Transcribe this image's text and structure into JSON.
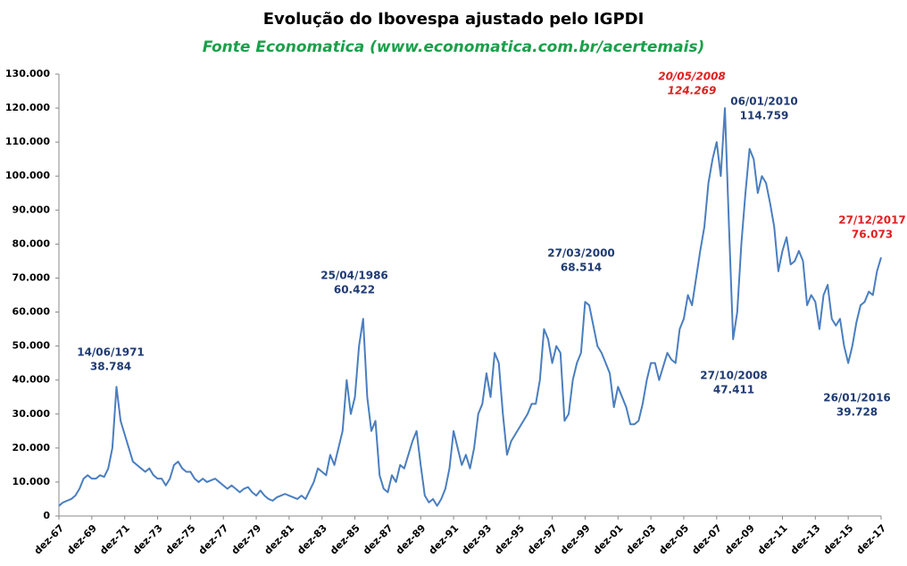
{
  "chart_data": {
    "type": "line",
    "title": "Evolução do Ibovespa ajustado pelo IGPDI",
    "subtitle": "Fonte Economatica (www.economatica.com.br/acertemais)",
    "categories": [
      "dez-67",
      null,
      null,
      null,
      null,
      null,
      null,
      null,
      "dez-69",
      null,
      null,
      null,
      null,
      null,
      null,
      null,
      "dez-71",
      null,
      null,
      null,
      null,
      null,
      null,
      null,
      "dez-73",
      null,
      null,
      null,
      null,
      null,
      null,
      null,
      "dez-75",
      null,
      null,
      null,
      null,
      null,
      null,
      null,
      "dez-77",
      null,
      null,
      null,
      null,
      null,
      null,
      null,
      "dez-79",
      null,
      null,
      null,
      null,
      null,
      null,
      null,
      "dez-81",
      null,
      null,
      null,
      null,
      null,
      null,
      null,
      "dez-83",
      null,
      null,
      null,
      null,
      null,
      null,
      null,
      "dez-85",
      null,
      null,
      null,
      null,
      null,
      null,
      null,
      "dez-87",
      null,
      null,
      null,
      null,
      null,
      null,
      null,
      "dez-89",
      null,
      null,
      null,
      null,
      null,
      null,
      null,
      "dez-91",
      null,
      null,
      null,
      null,
      null,
      null,
      null,
      "dez-93",
      null,
      null,
      null,
      null,
      null,
      null,
      null,
      "dez-95",
      null,
      null,
      null,
      null,
      null,
      null,
      null,
      "dez-97",
      null,
      null,
      null,
      null,
      null,
      null,
      null,
      "dez-99",
      null,
      null,
      null,
      null,
      null,
      null,
      null,
      "dez-01",
      null,
      null,
      null,
      null,
      null,
      null,
      null,
      "dez-03",
      null,
      null,
      null,
      null,
      null,
      null,
      null,
      "dez-05",
      null,
      null,
      null,
      null,
      null,
      null,
      null,
      "dez-07",
      null,
      null,
      null,
      null,
      null,
      null,
      null,
      "dez-09",
      null,
      null,
      null,
      null,
      null,
      null,
      null,
      "dez-11",
      null,
      null,
      null,
      null,
      null,
      null,
      null,
      "dez-13",
      null,
      null,
      null,
      null,
      null,
      null,
      null,
      "dez-15",
      null,
      null,
      null,
      null,
      null,
      null,
      null,
      "dez-17"
    ],
    "series": [
      {
        "color": "#4a7ebf",
        "values": [
          3000,
          4000,
          4500,
          5000,
          6000,
          8000,
          11000,
          12000,
          11000,
          11000,
          12000,
          11500,
          14000,
          20000,
          38000,
          28000,
          24000,
          20000,
          16000,
          15000,
          14000,
          13000,
          14000,
          12000,
          11000,
          11000,
          9000,
          11000,
          15000,
          16000,
          14000,
          13000,
          13000,
          11000,
          10000,
          11000,
          10000,
          10500,
          11000,
          10000,
          9000,
          8000,
          9000,
          8000,
          7000,
          8000,
          8500,
          7000,
          6000,
          7500,
          6000,
          5000,
          4500,
          5500,
          6000,
          6500,
          6000,
          5500,
          5000,
          6000,
          5000,
          7500,
          10000,
          14000,
          13000,
          12000,
          18000,
          15000,
          20000,
          25000,
          40000,
          30000,
          35000,
          50000,
          58000,
          35000,
          25000,
          28000,
          12000,
          8000,
          7000,
          12000,
          10000,
          15000,
          14000,
          18000,
          22000,
          25000,
          15000,
          6000,
          4000,
          5000,
          3000,
          5000,
          8000,
          14000,
          25000,
          20000,
          15000,
          18000,
          14000,
          20000,
          30000,
          33000,
          42000,
          35000,
          48000,
          45000,
          30000,
          18000,
          22000,
          24000,
          26000,
          28000,
          30000,
          33000,
          33000,
          40000,
          55000,
          52000,
          45000,
          50000,
          48000,
          28000,
          30000,
          40000,
          45000,
          48000,
          63000,
          62000,
          56000,
          50000,
          48000,
          45000,
          42000,
          32000,
          38000,
          35000,
          32000,
          27000,
          27000,
          28000,
          33000,
          40000,
          45000,
          45000,
          40000,
          44000,
          48000,
          46000,
          45000,
          55000,
          58000,
          65000,
          62000,
          70000,
          78000,
          85000,
          98000,
          105000,
          110000,
          100000,
          120000,
          85000,
          52000,
          60000,
          80000,
          95000,
          108000,
          105000,
          95000,
          100000,
          98000,
          92000,
          85000,
          72000,
          78000,
          82000,
          74000,
          75000,
          78000,
          75000,
          62000,
          65000,
          63000,
          55000,
          65000,
          68000,
          58000,
          56000,
          58000,
          50000,
          45000,
          50000,
          57000,
          62000,
          63000,
          66000,
          65000,
          72000,
          76073
        ]
      }
    ],
    "ylim": [
      0,
      130000
    ],
    "yticks": [
      0,
      {
        "value": 10000,
        "label": "10.000"
      },
      {
        "value": 20000,
        "label": "20.000"
      },
      {
        "value": 30000,
        "label": "30.000"
      },
      {
        "value": 40000,
        "label": "40.000"
      },
      {
        "value": 50000,
        "label": "50.000"
      },
      {
        "value": 60000,
        "label": "60.000"
      },
      {
        "value": 70000,
        "label": "70.000"
      },
      {
        "value": 80000,
        "label": "80.000"
      },
      {
        "value": 90000,
        "label": "90.000"
      },
      {
        "value": 100000,
        "label": "100.000"
      },
      {
        "value": 110000,
        "label": "110.000"
      },
      {
        "value": 120000,
        "label": "120.000"
      },
      {
        "value": 130000,
        "label": "130.000"
      }
    ],
    "annotations": [
      {
        "date": "14/06/1971",
        "label": "38.784",
        "color": "#1f3b73"
      },
      {
        "date": "25/04/1986",
        "label": "60.422",
        "color": "#1f3b73"
      },
      {
        "date": "27/03/2000",
        "label": "68.514",
        "color": "#1f3b73"
      },
      {
        "date": "20/05/2008",
        "label": "124.269",
        "color": "#e02020",
        "italic": true
      },
      {
        "date": "06/01/2010",
        "label": "114.759",
        "color": "#1f3b73"
      },
      {
        "date": "27/10/2008",
        "label": "47.411",
        "color": "#1f3b73"
      },
      {
        "date": "26/01/2016",
        "label": "39.728",
        "color": "#1f3b73"
      },
      {
        "date": "27/12/2017",
        "label": "76.073",
        "color": "#e02020"
      }
    ]
  }
}
